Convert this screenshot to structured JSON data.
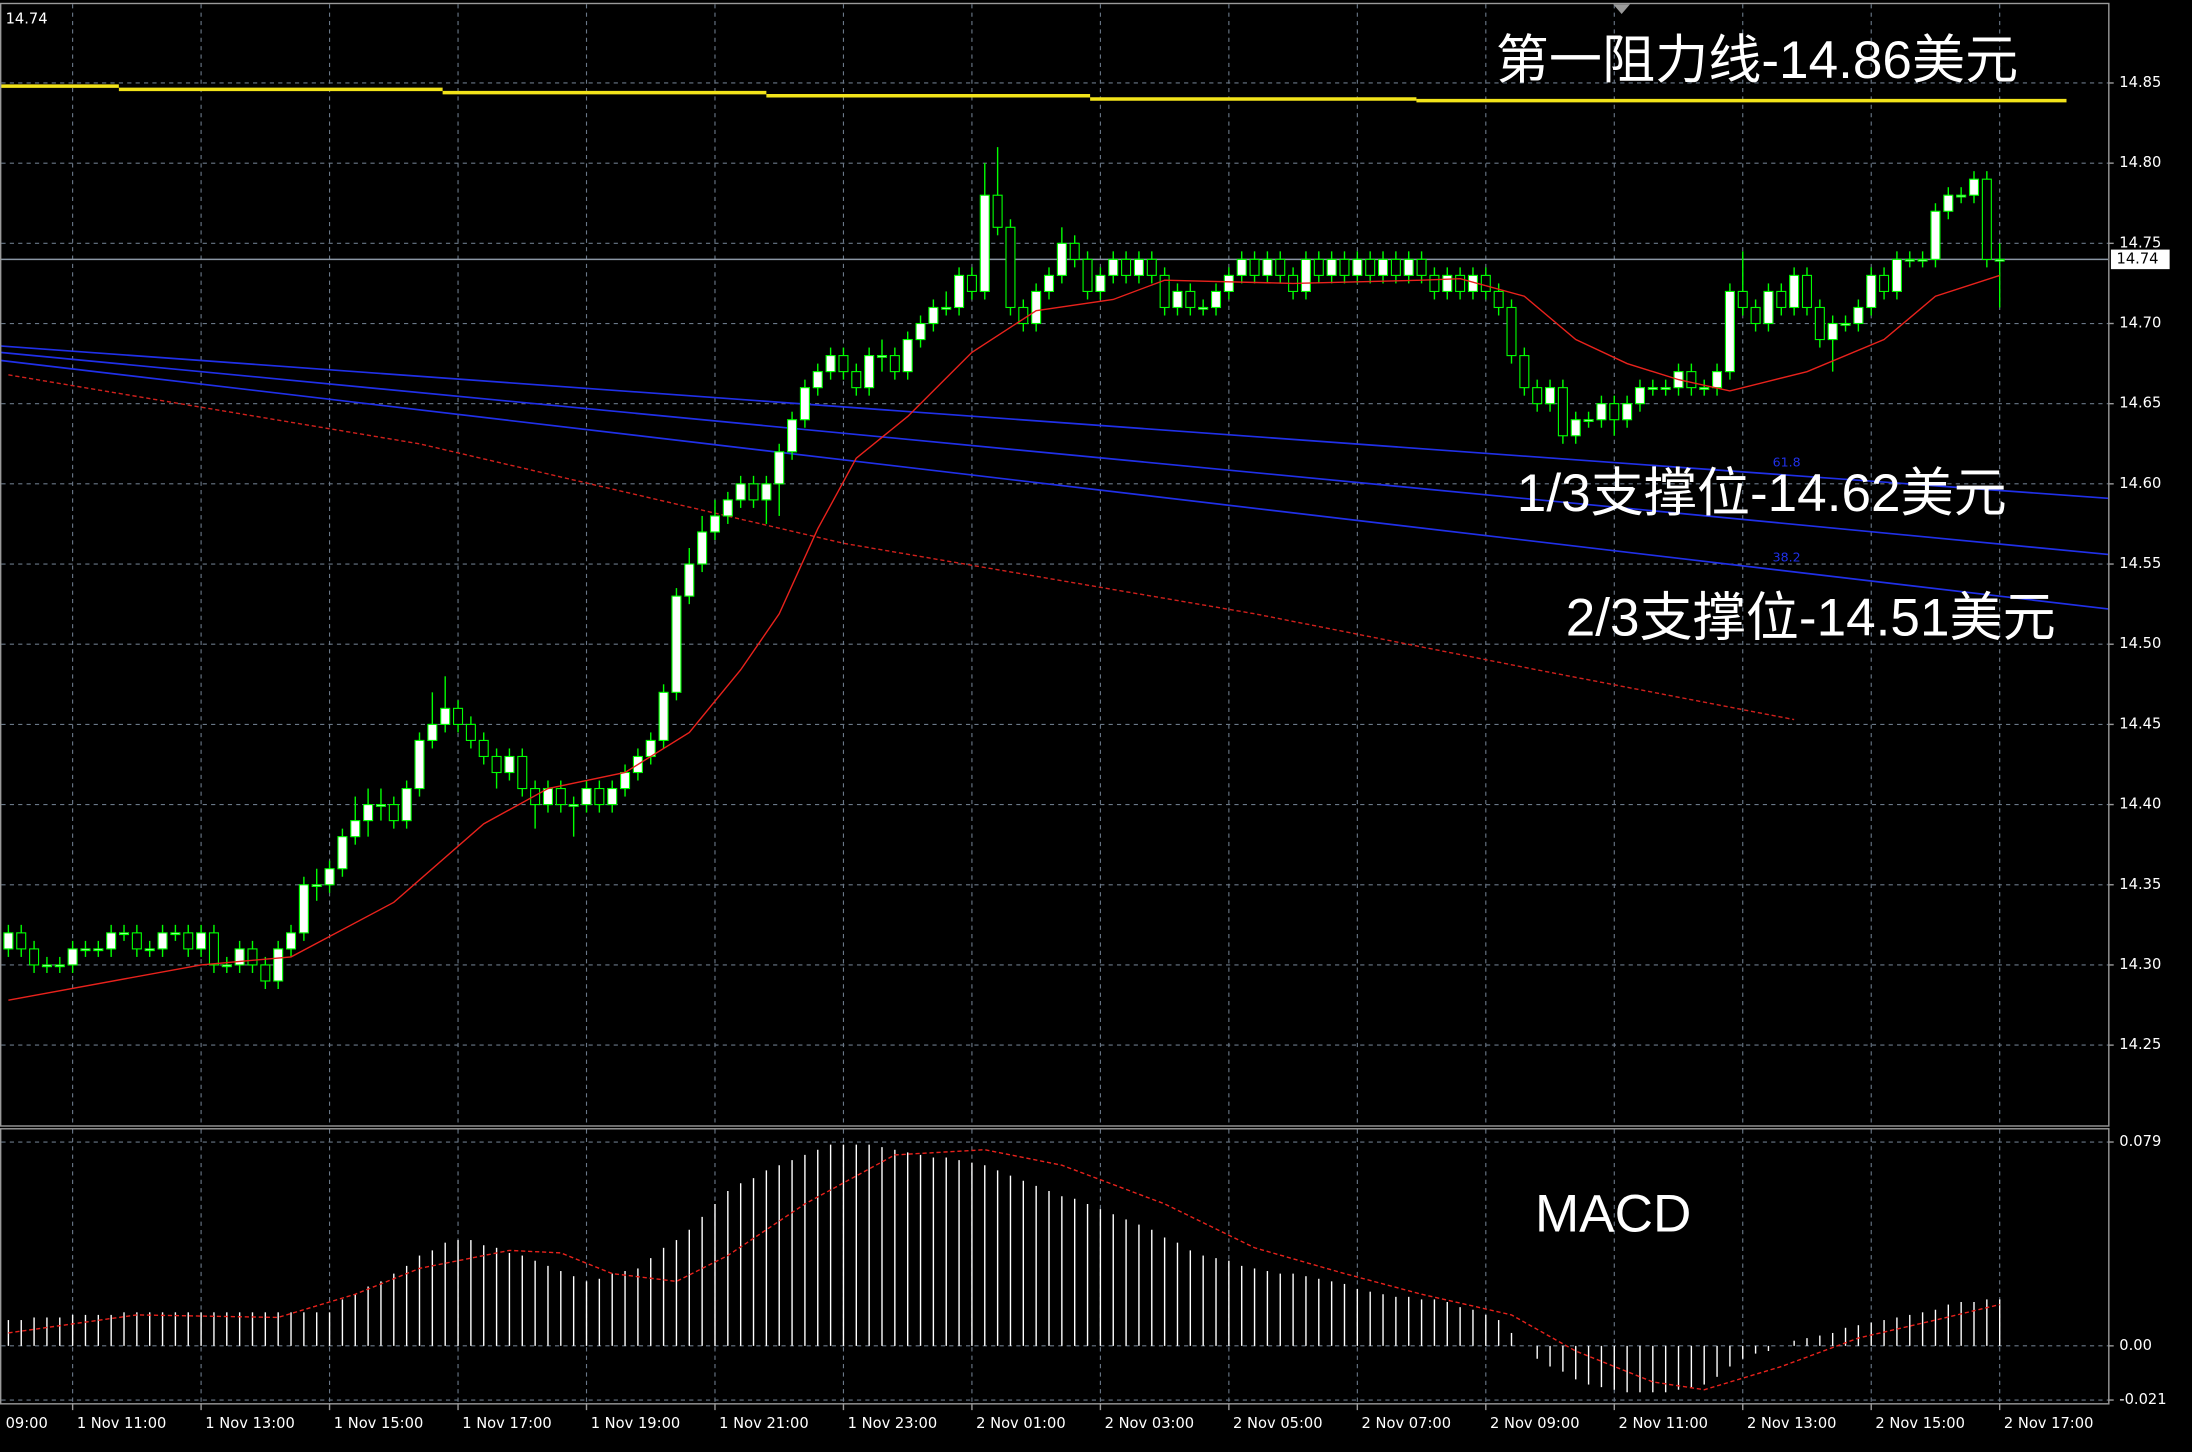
{
  "chart_data": [
    {
      "type": "candlestick",
      "open": [
        14.31,
        14.32,
        14.31,
        14.3,
        14.3,
        14.3,
        14.31,
        14.31,
        14.31,
        14.32,
        14.32,
        14.31,
        14.31,
        14.32,
        14.32,
        14.31,
        14.32,
        14.3,
        14.3,
        14.31,
        14.3,
        14.29,
        14.31,
        14.32,
        14.35,
        14.35,
        14.36,
        14.38,
        14.39,
        14.4,
        14.4,
        14.39,
        14.41,
        14.44,
        14.45,
        14.46,
        14.45,
        14.44,
        14.43,
        14.42,
        14.43,
        14.41,
        14.4,
        14.41,
        14.4,
        14.4,
        14.41,
        14.4,
        14.41,
        14.42,
        14.43,
        14.44,
        14.47,
        14.53,
        14.55,
        14.57,
        14.58,
        14.59,
        14.6,
        14.59,
        14.6,
        14.62,
        14.64,
        14.66,
        14.67,
        14.68,
        14.67,
        14.66,
        14.68,
        14.68,
        14.67,
        14.69,
        14.7,
        14.71,
        14.71,
        14.73,
        14.72,
        14.78,
        14.76,
        14.71,
        14.7,
        14.72,
        14.73,
        14.75,
        14.74,
        14.72,
        14.73,
        14.74,
        14.73,
        14.74,
        14.73,
        14.71,
        14.72,
        14.71,
        14.71,
        14.72,
        14.73,
        14.74,
        14.73,
        14.74,
        14.73,
        14.72,
        14.74,
        14.73,
        14.74,
        14.73,
        14.74,
        14.73,
        14.74,
        14.73,
        14.74,
        14.73,
        14.72,
        14.73,
        14.72,
        14.73,
        14.72,
        14.71,
        14.68,
        14.66,
        14.65,
        14.66,
        14.63,
        14.64,
        14.64,
        14.65,
        14.64,
        14.65,
        14.66,
        14.66,
        14.66,
        14.67,
        14.66,
        14.66,
        14.67,
        14.72,
        14.71,
        14.7,
        14.72,
        14.71,
        14.73,
        14.71,
        14.69,
        14.7,
        14.7,
        14.71,
        14.73,
        14.72,
        14.74,
        14.74,
        14.74,
        14.77,
        14.78,
        14.78,
        14.79,
        14.74
      ],
      "high": [
        14.325,
        14.325,
        14.315,
        14.305,
        14.305,
        14.315,
        14.315,
        14.315,
        14.325,
        14.325,
        14.325,
        14.315,
        14.325,
        14.325,
        14.325,
        14.325,
        14.325,
        14.305,
        14.315,
        14.315,
        14.305,
        14.315,
        14.325,
        14.355,
        14.36,
        14.365,
        14.385,
        14.405,
        14.41,
        14.41,
        14.405,
        14.415,
        14.445,
        14.47,
        14.48,
        14.465,
        14.455,
        14.445,
        14.435,
        14.435,
        14.435,
        14.415,
        14.415,
        14.415,
        14.405,
        14.415,
        14.415,
        14.415,
        14.425,
        14.435,
        14.445,
        14.475,
        14.535,
        14.56,
        14.58,
        14.59,
        14.595,
        14.605,
        14.605,
        14.605,
        14.625,
        14.645,
        14.665,
        14.675,
        14.685,
        14.685,
        14.675,
        14.685,
        14.69,
        14.685,
        14.695,
        14.705,
        14.715,
        14.72,
        14.735,
        14.735,
        14.8,
        14.81,
        14.765,
        14.715,
        14.725,
        14.735,
        14.76,
        14.755,
        14.745,
        14.735,
        14.745,
        14.745,
        14.745,
        14.745,
        14.735,
        14.725,
        14.725,
        14.715,
        14.725,
        14.735,
        14.745,
        14.745,
        14.745,
        14.745,
        14.735,
        14.745,
        14.745,
        14.745,
        14.745,
        14.745,
        14.745,
        14.745,
        14.745,
        14.745,
        14.745,
        14.735,
        14.735,
        14.735,
        14.735,
        14.735,
        14.725,
        14.715,
        14.685,
        14.665,
        14.665,
        14.665,
        14.645,
        14.645,
        14.655,
        14.655,
        14.655,
        14.665,
        14.665,
        14.665,
        14.675,
        14.675,
        14.665,
        14.675,
        14.725,
        14.745,
        14.715,
        14.725,
        14.725,
        14.735,
        14.735,
        14.715,
        14.705,
        14.705,
        14.715,
        14.735,
        14.735,
        14.745,
        14.745,
        14.745,
        14.775,
        14.785,
        14.785,
        14.795,
        14.795,
        14.75
      ],
      "low": [
        14.305,
        14.305,
        14.295,
        14.295,
        14.295,
        14.295,
        14.305,
        14.305,
        14.305,
        14.315,
        14.305,
        14.305,
        14.305,
        14.315,
        14.305,
        14.305,
        14.295,
        14.295,
        14.295,
        14.295,
        14.285,
        14.285,
        14.305,
        14.315,
        14.34,
        14.345,
        14.355,
        14.375,
        14.38,
        14.39,
        14.385,
        14.385,
        14.405,
        14.435,
        14.445,
        14.445,
        14.435,
        14.425,
        14.41,
        14.415,
        14.405,
        14.385,
        14.395,
        14.395,
        14.38,
        14.395,
        14.395,
        14.395,
        14.405,
        14.415,
        14.425,
        14.435,
        14.465,
        14.525,
        14.545,
        14.565,
        14.575,
        14.585,
        14.585,
        14.575,
        14.58,
        14.615,
        14.635,
        14.655,
        14.665,
        14.665,
        14.655,
        14.655,
        14.67,
        14.665,
        14.665,
        14.685,
        14.695,
        14.705,
        14.705,
        14.715,
        14.715,
        14.755,
        14.705,
        14.695,
        14.695,
        14.715,
        14.725,
        14.735,
        14.715,
        14.715,
        14.725,
        14.725,
        14.725,
        14.725,
        14.705,
        14.705,
        14.705,
        14.705,
        14.705,
        14.715,
        14.725,
        14.725,
        14.725,
        14.725,
        14.715,
        14.715,
        14.725,
        14.725,
        14.725,
        14.725,
        14.725,
        14.725,
        14.725,
        14.725,
        14.725,
        14.715,
        14.715,
        14.715,
        14.715,
        14.715,
        14.705,
        14.675,
        14.655,
        14.645,
        14.645,
        14.625,
        14.625,
        14.635,
        14.635,
        14.63,
        14.635,
        14.645,
        14.655,
        14.655,
        14.655,
        14.655,
        14.655,
        14.655,
        14.665,
        14.705,
        14.695,
        14.695,
        14.705,
        14.705,
        14.705,
        14.685,
        14.67,
        14.695,
        14.695,
        14.705,
        14.715,
        14.715,
        14.735,
        14.735,
        14.735,
        14.765,
        14.775,
        14.775,
        14.735,
        14.71
      ],
      "close": [
        14.32,
        14.31,
        14.3,
        14.3,
        14.3,
        14.31,
        14.31,
        14.31,
        14.32,
        14.32,
        14.31,
        14.31,
        14.32,
        14.32,
        14.31,
        14.32,
        14.3,
        14.3,
        14.31,
        14.3,
        14.29,
        14.31,
        14.32,
        14.35,
        14.35,
        14.36,
        14.38,
        14.39,
        14.4,
        14.4,
        14.39,
        14.41,
        14.44,
        14.45,
        14.46,
        14.45,
        14.44,
        14.43,
        14.42,
        14.43,
        14.41,
        14.4,
        14.41,
        14.4,
        14.4,
        14.41,
        14.4,
        14.41,
        14.42,
        14.43,
        14.44,
        14.47,
        14.53,
        14.55,
        14.57,
        14.58,
        14.59,
        14.6,
        14.59,
        14.6,
        14.62,
        14.64,
        14.66,
        14.67,
        14.68,
        14.67,
        14.66,
        14.68,
        14.68,
        14.67,
        14.69,
        14.7,
        14.71,
        14.71,
        14.73,
        14.72,
        14.78,
        14.76,
        14.71,
        14.7,
        14.72,
        14.73,
        14.75,
        14.74,
        14.72,
        14.73,
        14.74,
        14.73,
        14.74,
        14.73,
        14.71,
        14.72,
        14.71,
        14.71,
        14.72,
        14.73,
        14.74,
        14.73,
        14.74,
        14.73,
        14.72,
        14.74,
        14.73,
        14.74,
        14.73,
        14.74,
        14.73,
        14.74,
        14.73,
        14.74,
        14.73,
        14.72,
        14.73,
        14.72,
        14.73,
        14.72,
        14.71,
        14.68,
        14.66,
        14.65,
        14.66,
        14.63,
        14.64,
        14.64,
        14.65,
        14.64,
        14.65,
        14.66,
        14.66,
        14.66,
        14.67,
        14.66,
        14.66,
        14.67,
        14.72,
        14.71,
        14.7,
        14.72,
        14.71,
        14.73,
        14.71,
        14.69,
        14.7,
        14.7,
        14.71,
        14.73,
        14.72,
        14.74,
        14.74,
        14.74,
        14.77,
        14.78,
        14.78,
        14.79,
        14.74,
        14.74
      ],
      "up_color": "#ffffff",
      "down_color": "#000000",
      "wick_color": "#00ff00",
      "xlim": [
        -0.653,
        163.44
      ],
      "ylim": [
        14.2,
        14.9
      ],
      "yticks": [
        14.85,
        {
          "value": 14.8,
          "label": "14.80"
        },
        14.75,
        {
          "value": 14.7,
          "label": "14.70"
        },
        14.65,
        {
          "value": 14.6,
          "label": "14.60"
        },
        14.55,
        {
          "value": 14.5,
          "label": "14.50"
        },
        14.45,
        {
          "value": 14.4,
          "label": "14.40"
        },
        14.35,
        {
          "value": 14.3,
          "label": "14.30"
        },
        14.25
      ],
      "xticks": [
        {
          "value": -5,
          "label": "09:00"
        },
        {
          "value": 5,
          "label": "1 Nov 11:00"
        },
        {
          "value": 15,
          "label": "1 Nov 13:00"
        },
        {
          "value": 25,
          "label": "1 Nov 15:00"
        },
        {
          "value": 35,
          "label": "1 Nov 17:00"
        },
        {
          "value": 45,
          "label": "1 Nov 19:00"
        },
        {
          "value": 55,
          "label": "1 Nov 21:00"
        },
        {
          "value": 65,
          "label": "1 Nov 23:00"
        },
        {
          "value": 75,
          "label": "2 Nov 01:00"
        },
        {
          "value": 85,
          "label": "2 Nov 03:00"
        },
        {
          "value": 95,
          "label": "2 Nov 05:00"
        },
        {
          "value": 105,
          "label": "2 Nov 07:00"
        },
        {
          "value": 115,
          "label": "2 Nov 09:00"
        },
        {
          "value": 125,
          "label": "2 Nov 11:00"
        },
        {
          "value": 135,
          "label": "2 Nov 13:00"
        },
        {
          "value": 145,
          "label": "2 Nov 15:00"
        },
        {
          "value": 155,
          "label": "2 Nov 17:00"
        }
      ],
      "grid": true,
      "grid_color": "#6a7888",
      "current_price": 14.74,
      "current_price_color": "#8a96a4",
      "ma": {
        "color": "#e8221c",
        "dashed": false,
        "x": [
          0,
          15,
          22,
          30,
          37,
          42,
          48,
          53,
          57,
          60,
          63,
          66,
          70,
          75,
          80,
          86,
          90,
          100,
          110,
          113,
          118,
          122,
          126,
          130,
          134,
          140,
          146,
          150,
          155
        ],
        "values": [
          14.278,
          14.3,
          14.305,
          14.339,
          14.388,
          14.41,
          14.42,
          14.445,
          14.484,
          14.519,
          14.572,
          14.616,
          14.642,
          14.682,
          14.708,
          14.715,
          14.727,
          14.725,
          14.727,
          14.728,
          14.717,
          14.69,
          14.675,
          14.665,
          14.658,
          14.67,
          14.69,
          14.717,
          14.73
        ]
      },
      "ma_slow": {
        "color": "#d0201c",
        "dashed": true,
        "x": [
          0,
          32,
          65,
          97,
          119,
          139
        ],
        "values": [
          14.668,
          14.625,
          14.563,
          14.519,
          14.484,
          14.453
        ]
      },
      "fan": [
        {
          "label": "61.8",
          "color": "#2030e8",
          "x": [
            -0.653,
            163.44
          ],
          "values": [
            14.686,
            14.591
          ]
        },
        {
          "color": "#2030e8",
          "x": [
            -0.653,
            163.44
          ],
          "values": [
            14.682,
            14.556
          ]
        },
        {
          "label": "38.2",
          "color": "#2030e8",
          "x": [
            -0.653,
            163.44
          ],
          "values": [
            14.677,
            14.522
          ]
        }
      ],
      "resistance": {
        "color": "#f2e31a",
        "segments": [
          {
            "x": [
              -0.653,
              8.6
            ],
            "value": 14.848
          },
          {
            "x": [
              8.6,
              33.8
            ],
            "value": 14.846
          },
          {
            "x": [
              33.8,
              59
            ],
            "value": 14.844
          },
          {
            "x": [
              59,
              84.2
            ],
            "value": 14.842
          },
          {
            "x": [
              84.2,
              109.6
            ],
            "value": 14.84
          },
          {
            "x": [
              109.6,
              160.2
            ],
            "value": 14.839
          }
        ]
      },
      "annotations": [
        "第一阻力线-14.86美元",
        "1/3支撑位-14.62美元",
        "2/3支撑位-14.51美元"
      ]
    },
    {
      "type": "macd",
      "title": "MACD",
      "color": "#ffffff",
      "values": [
        0.01,
        0.01,
        0.011,
        0.011,
        0.011,
        0.012,
        0.012,
        0.012,
        0.012,
        0.013,
        0.013,
        0.013,
        0.013,
        0.013,
        0.013,
        0.013,
        0.013,
        0.013,
        0.013,
        0.013,
        0.013,
        0.013,
        0.013,
        0.013,
        0.013,
        0.013,
        0.018,
        0.02,
        0.023,
        0.025,
        0.028,
        0.031,
        0.035,
        0.037,
        0.04,
        0.041,
        0.041,
        0.039,
        0.038,
        0.036,
        0.035,
        0.033,
        0.031,
        0.029,
        0.027,
        0.025,
        0.026,
        0.028,
        0.029,
        0.03,
        0.034,
        0.038,
        0.041,
        0.045,
        0.05,
        0.055,
        0.06,
        0.063,
        0.065,
        0.068,
        0.07,
        0.072,
        0.074,
        0.076,
        0.078,
        0.078,
        0.078,
        0.078,
        0.077,
        0.076,
        0.075,
        0.074,
        0.073,
        0.073,
        0.072,
        0.071,
        0.07,
        0.068,
        0.066,
        0.064,
        0.062,
        0.06,
        0.058,
        0.057,
        0.055,
        0.053,
        0.051,
        0.049,
        0.047,
        0.045,
        0.042,
        0.04,
        0.037,
        0.035,
        0.034,
        0.033,
        0.031,
        0.03,
        0.029,
        0.028,
        0.028,
        0.027,
        0.026,
        0.025,
        0.024,
        0.022,
        0.021,
        0.02,
        0.019,
        0.019,
        0.018,
        0.018,
        0.017,
        0.015,
        0.014,
        0.012,
        0.01,
        0.005,
        0.0,
        -0.005,
        -0.008,
        -0.01,
        -0.013,
        -0.015,
        -0.016,
        -0.017,
        -0.018,
        -0.018,
        -0.018,
        -0.018,
        -0.017,
        -0.016,
        -0.015,
        -0.012,
        -0.008,
        -0.005,
        -0.003,
        -0.002,
        0.0,
        0.002,
        0.003,
        0.004,
        0.005,
        0.007,
        0.008,
        0.009,
        0.01,
        0.011,
        0.012,
        0.013,
        0.014,
        0.016,
        0.017,
        0.017,
        0.018,
        0.018
      ],
      "signal": {
        "color": "#e8221c",
        "x": [
          0,
          10,
          21,
          27,
          32,
          39,
          43,
          47,
          52,
          56,
          62,
          69,
          76,
          82,
          90,
          97,
          104,
          110,
          117,
          122,
          128,
          132,
          138,
          144,
          150,
          155
        ],
        "values": [
          0.005,
          0.012,
          0.011,
          0.02,
          0.03,
          0.037,
          0.036,
          0.028,
          0.025,
          0.035,
          0.055,
          0.074,
          0.076,
          0.07,
          0.055,
          0.038,
          0.028,
          0.02,
          0.012,
          -0.002,
          -0.014,
          -0.017,
          -0.008,
          0.003,
          0.01,
          0.016
        ]
      },
      "ylim": [
        -0.0222,
        0.0844
      ],
      "yticks": [
        0.079,
        {
          "value": 0,
          "label": "0.00"
        },
        -0.021
      ]
    }
  ]
}
